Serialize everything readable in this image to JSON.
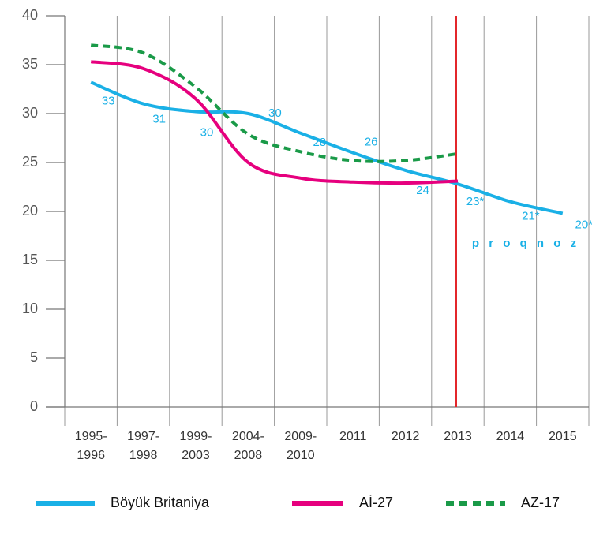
{
  "chart_data": {
    "type": "line",
    "categories": [
      "1995-1996",
      "1997-1998",
      "1999-2003",
      "2004-2008",
      "2009-2010",
      "2011",
      "2012",
      "2013",
      "2014",
      "2015"
    ],
    "series": [
      {
        "name": "Böyük Britaniya",
        "color": "#1ab0e6",
        "values": [
          33.2,
          31,
          30.2,
          30,
          28,
          26,
          24.2,
          22.8,
          21,
          19.8
        ],
        "value_labels": [
          "33",
          "31",
          "30",
          "30",
          "28",
          "26",
          "24",
          "23*",
          "21*",
          "20*"
        ]
      },
      {
        "name": "Aİ-27",
        "color": "#e6007e",
        "values": [
          35.3,
          34.6,
          31.5,
          25,
          23.4,
          23,
          22.9,
          23.1,
          null,
          null
        ]
      },
      {
        "name": "AZ-17",
        "color": "#1a9a48",
        "dashed": true,
        "values": [
          37,
          36.2,
          32.7,
          27.9,
          26.1,
          25.2,
          25.2,
          25.9,
          null,
          null
        ]
      }
    ],
    "ylim": [
      0,
      40
    ],
    "yticks": [
      0,
      5,
      10,
      15,
      20,
      25,
      30,
      35,
      40
    ],
    "marker_line": {
      "category": "2013",
      "color": "#e3262b"
    },
    "annotation": "p r o q n o z",
    "annotation_color": "#1ab0e6"
  }
}
